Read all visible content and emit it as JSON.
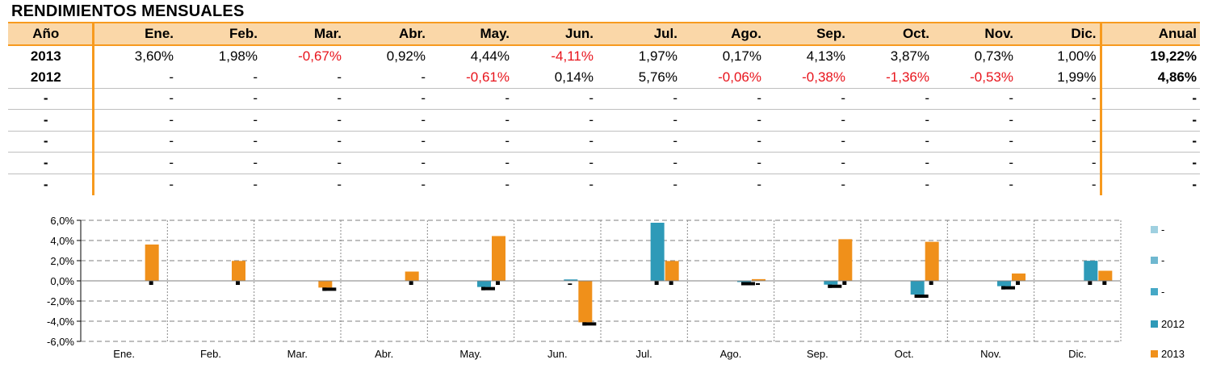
{
  "title": "RENDIMIENTOS MENSUALES",
  "table": {
    "headers": [
      "Año",
      "Ene.",
      "Feb.",
      "Mar.",
      "Abr.",
      "May.",
      "Jun.",
      "Jul.",
      "Ago.",
      "Sep.",
      "Oct.",
      "Nov.",
      "Dic.",
      "Anual"
    ],
    "rows": [
      [
        "2013",
        "3,60%",
        "1,98%",
        "-0,67%",
        "0,92%",
        "4,44%",
        "-4,11%",
        "1,97%",
        "0,17%",
        "4,13%",
        "3,87%",
        "0,73%",
        "1,00%",
        "19,22%"
      ],
      [
        "2012",
        "-",
        "-",
        "-",
        "-",
        "-0,61%",
        "0,14%",
        "5,76%",
        "-0,06%",
        "-0,38%",
        "-1,36%",
        "-0,53%",
        "1,99%",
        "4,86%"
      ],
      [
        "-",
        "-",
        "-",
        "-",
        "-",
        "-",
        "-",
        "-",
        "-",
        "-",
        "-",
        "-",
        "-",
        "-"
      ],
      [
        "-",
        "-",
        "-",
        "-",
        "-",
        "-",
        "-",
        "-",
        "-",
        "-",
        "-",
        "-",
        "-",
        "-"
      ],
      [
        "-",
        "-",
        "-",
        "-",
        "-",
        "-",
        "-",
        "-",
        "-",
        "-",
        "-",
        "-",
        "-",
        "-"
      ],
      [
        "-",
        "-",
        "-",
        "-",
        "-",
        "-",
        "-",
        "-",
        "-",
        "-",
        "-",
        "-",
        "-",
        "-"
      ],
      [
        "-",
        "-",
        "-",
        "-",
        "-",
        "-",
        "-",
        "-",
        "-",
        "-",
        "-",
        "-",
        "-",
        "-"
      ]
    ]
  },
  "colors": {
    "accent": "#f79a1e",
    "header_bg": "#fad7a8",
    "negative": "#e8141c",
    "series_2013": "#f0901a",
    "series_2012": "#2e9ab8"
  },
  "chart_data": {
    "type": "bar",
    "categories": [
      "Ene.",
      "Feb.",
      "Mar.",
      "Abr.",
      "May.",
      "Jun.",
      "Jul.",
      "Ago.",
      "Sep.",
      "Oct.",
      "Nov.",
      "Dic."
    ],
    "series": [
      {
        "name": "-",
        "values": [
          null,
          null,
          null,
          null,
          null,
          null,
          null,
          null,
          null,
          null,
          null,
          null
        ],
        "color": "#9fd0e0"
      },
      {
        "name": "-",
        "values": [
          null,
          null,
          null,
          null,
          null,
          null,
          null,
          null,
          null,
          null,
          null,
          null
        ],
        "color": "#6fb8d0"
      },
      {
        "name": "-",
        "values": [
          null,
          null,
          null,
          null,
          null,
          null,
          null,
          null,
          null,
          null,
          null,
          null
        ],
        "color": "#45a8c6"
      },
      {
        "name": "2012",
        "values": [
          null,
          null,
          null,
          null,
          -0.61,
          0.14,
          5.76,
          -0.06,
          -0.38,
          -1.36,
          -0.53,
          1.99
        ],
        "color": "#2e9ab8"
      },
      {
        "name": "2013",
        "values": [
          3.6,
          1.98,
          -0.67,
          0.92,
          4.44,
          -4.11,
          1.97,
          0.17,
          4.13,
          3.87,
          0.73,
          1.0
        ],
        "color": "#f0901a"
      }
    ],
    "ylim": [
      -6,
      6
    ],
    "yticks": [
      "6,0%",
      "4,0%",
      "2,0%",
      "0,0%",
      "-2,0%",
      "-4,0%",
      "-6,0%"
    ],
    "ytick_values": [
      6,
      4,
      2,
      0,
      -2,
      -4,
      -6
    ],
    "grid": true,
    "legend": "right"
  }
}
